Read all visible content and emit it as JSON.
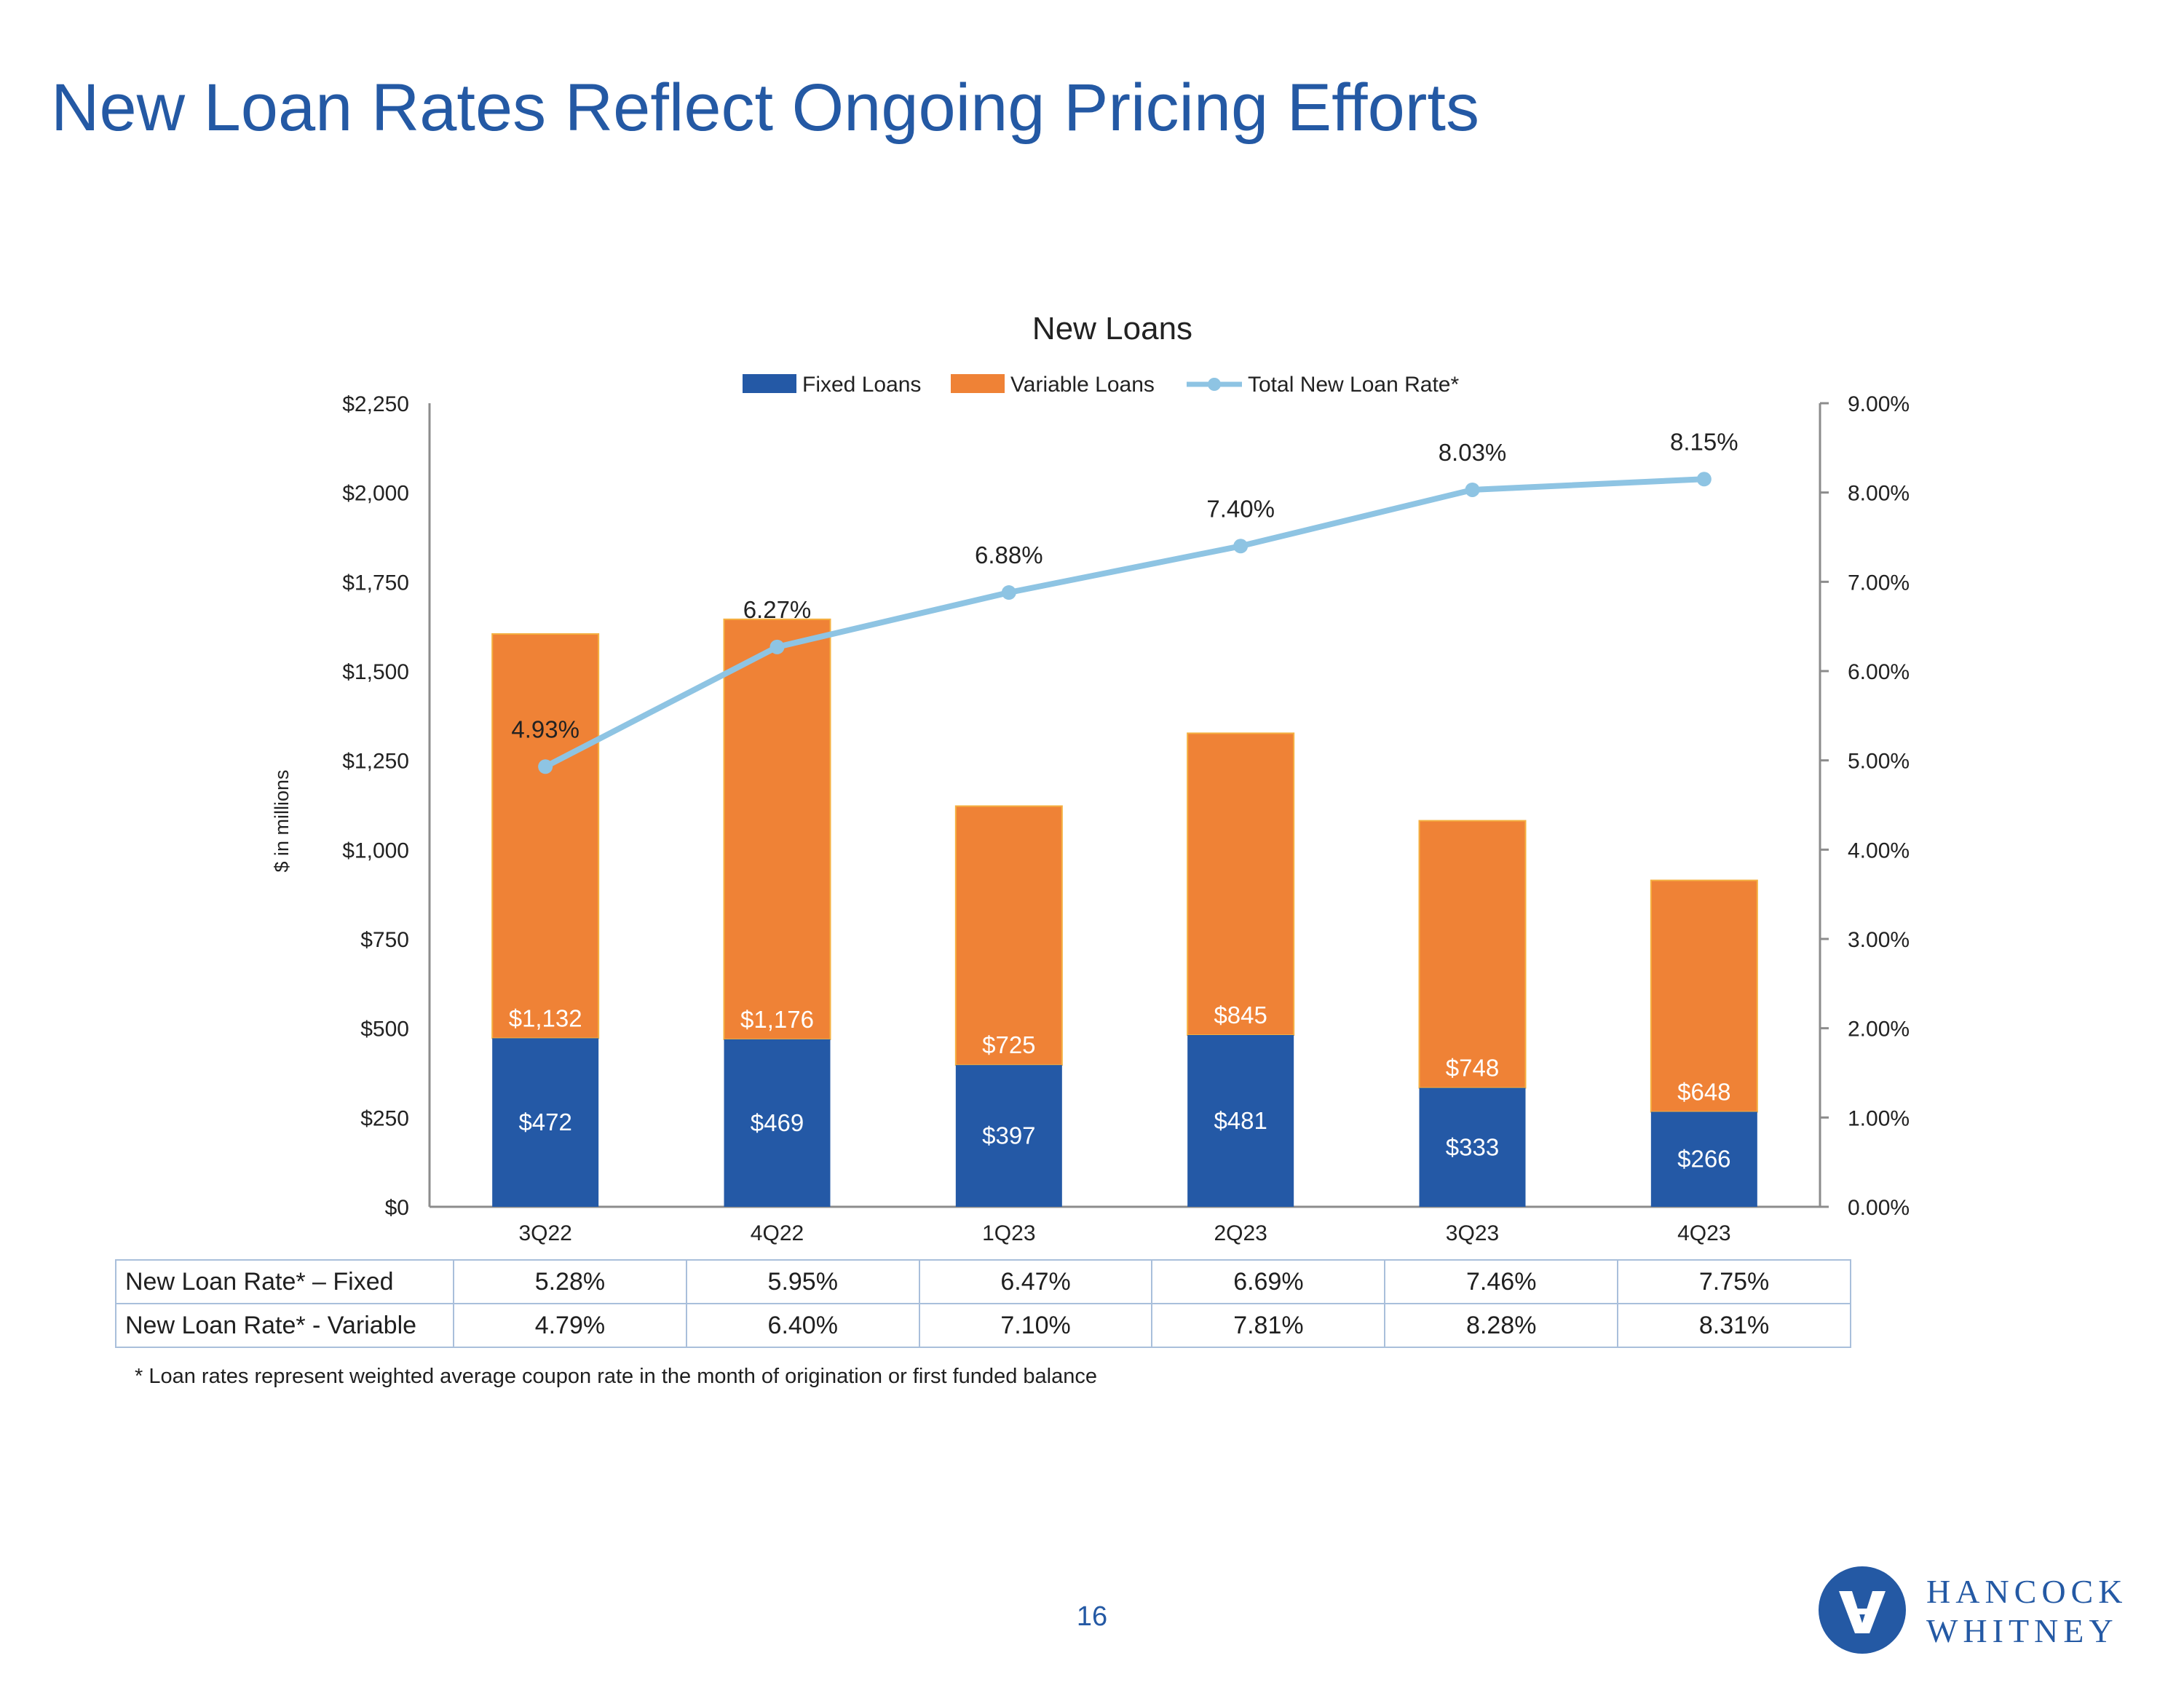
{
  "page": {
    "title": "New Loan Rates Reflect Ongoing Pricing Efforts",
    "page_number": "16",
    "footnote": "* Loan rates represent weighted average coupon rate in the month of origination or first funded balance",
    "logo": {
      "line1": "HANCOCK",
      "line2": "WHITNEY"
    }
  },
  "colors": {
    "fixed": "#2459a6",
    "variable": "#ef8236",
    "rate_line": "#8ec4e3",
    "title": "#2459a4"
  },
  "chart_data": {
    "type": "bar",
    "stacked": true,
    "title": "New Loans",
    "ylabel": "$ in millions",
    "ylim": [
      0,
      2250
    ],
    "y2lim": [
      0,
      9
    ],
    "yticks": [
      "$0",
      "$250",
      "$500",
      "$750",
      "$1,000",
      "$1,250",
      "$1,500",
      "$1,750",
      "$2,000",
      "$2,250"
    ],
    "y2ticks": [
      "0.00%",
      "1.00%",
      "2.00%",
      "3.00%",
      "4.00%",
      "5.00%",
      "6.00%",
      "7.00%",
      "8.00%",
      "9.00%"
    ],
    "categories": [
      "3Q22",
      "4Q22",
      "1Q23",
      "2Q23",
      "3Q23",
      "4Q23"
    ],
    "series": [
      {
        "name": "Fixed Loans",
        "kind": "bar",
        "values": [
          472,
          469,
          397,
          481,
          333,
          266
        ],
        "labels": [
          "$472",
          "$469",
          "$397",
          "$481",
          "$333",
          "$266"
        ]
      },
      {
        "name": "Variable Loans",
        "kind": "bar",
        "values": [
          1132,
          1176,
          725,
          845,
          748,
          648
        ],
        "labels": [
          "$1,132",
          "$1,176",
          "$725",
          "$845",
          "$748",
          "$648"
        ]
      },
      {
        "name": "Total New Loan Rate*",
        "kind": "line",
        "axis": "right",
        "values": [
          4.93,
          6.27,
          6.88,
          7.4,
          8.03,
          8.15
        ],
        "labels": [
          "4.93%",
          "6.27%",
          "6.88%",
          "7.40%",
          "8.03%",
          "8.15%"
        ]
      }
    ],
    "legend": [
      "Fixed Loans",
      "Variable Loans",
      "Total New Loan Rate*"
    ],
    "legend_position": "top-center"
  },
  "rate_table": {
    "rows": [
      {
        "label": "New Loan Rate* – Fixed",
        "values": [
          "5.28%",
          "5.95%",
          "6.47%",
          "6.69%",
          "7.46%",
          "7.75%"
        ]
      },
      {
        "label": "New Loan Rate* - Variable",
        "values": [
          "4.79%",
          "6.40%",
          "7.10%",
          "7.81%",
          "8.28%",
          "8.31%"
        ]
      }
    ]
  }
}
